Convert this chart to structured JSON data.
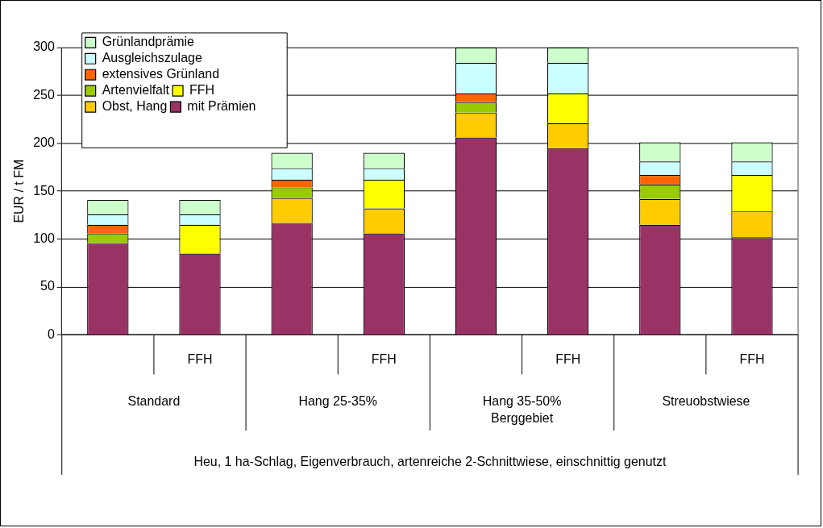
{
  "chart_data": {
    "type": "bar",
    "stacked": true,
    "ylabel": "EUR / t FM",
    "categories": [
      null,
      "FFH",
      null,
      "FFH",
      null,
      "FFH",
      null,
      "FFH"
    ],
    "series": [
      {
        "name": "mit Prämien",
        "color": "#993366",
        "values": [
          96,
          85,
          117,
          106,
          206,
          195,
          115,
          102
        ]
      },
      {
        "name": "Obst, Hang",
        "color": "#ffcc00",
        "values": [
          null,
          null,
          26,
          26,
          26,
          26,
          27,
          27
        ]
      },
      {
        "name": "FFH",
        "color": "#ffff00",
        "values": [
          null,
          30,
          null,
          30,
          null,
          31,
          null,
          38
        ]
      },
      {
        "name": "Artenvielfalt",
        "color": "#99cc00",
        "values": [
          10,
          null,
          11,
          null,
          11,
          null,
          15,
          null
        ]
      },
      {
        "name": "extensives Grünland",
        "color": "#ff6600",
        "values": [
          9,
          null,
          8,
          null,
          9,
          null,
          10,
          null
        ]
      },
      {
        "name": "Ausgleichszulage",
        "color": "#ccffff",
        "values": [
          11,
          11,
          12,
          12,
          32,
          32,
          14,
          14
        ]
      },
      {
        "name": "Grünlandprämie",
        "color": "#ccffcc",
        "values": [
          15,
          15,
          16,
          16,
          16,
          16,
          20,
          20
        ]
      }
    ],
    "ylim": [
      0,
      300
    ],
    "yticks": [
      0,
      50,
      100,
      150,
      200,
      250,
      300
    ],
    "grid": "y",
    "legend": "top left",
    "annotations": [
      "Standard",
      "Hang 25-35%",
      "Hang 35-50%\nBerggebiet",
      "Streuobstwiese",
      "Heu, 1 ha-Schlag, Eigenverbrauch, artenreiche 2-Schnittwiese, einschnittig genutzt"
    ]
  }
}
